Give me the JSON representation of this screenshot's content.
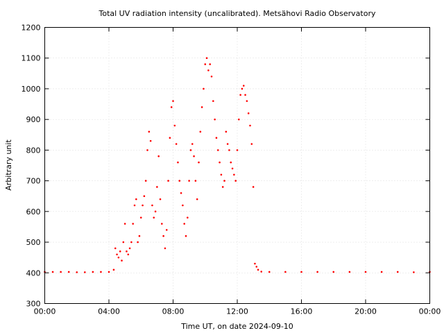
{
  "chart_data": {
    "type": "scatter",
    "title": "Total UV radiation intensity (uncalibrated). Metsähovi Radio Observatory",
    "xlabel": "Time UT, on date 2024-09-10",
    "ylabel": "Arbitrary unit",
    "xlim": [
      0,
      24
    ],
    "ylim": [
      300,
      1200
    ],
    "x_ticks": [
      {
        "value": 0,
        "label": "00:00"
      },
      {
        "value": 4,
        "label": "04:00"
      },
      {
        "value": 8,
        "label": "08:00"
      },
      {
        "value": 12,
        "label": "12:00"
      },
      {
        "value": 16,
        "label": "16:00"
      },
      {
        "value": 20,
        "label": "20:00"
      },
      {
        "value": 24,
        "label": "00:00"
      }
    ],
    "y_ticks": [
      {
        "value": 300,
        "label": "300"
      },
      {
        "value": 400,
        "label": "400"
      },
      {
        "value": 500,
        "label": "500"
      },
      {
        "value": 600,
        "label": "600"
      },
      {
        "value": 700,
        "label": "700"
      },
      {
        "value": 800,
        "label": "800"
      },
      {
        "value": 900,
        "label": "900"
      },
      {
        "value": 1000,
        "label": "1000"
      },
      {
        "value": 1100,
        "label": "1100"
      },
      {
        "value": 1200,
        "label": "1200"
      }
    ],
    "grid": true,
    "marker_color": "#ff0000",
    "series": [
      {
        "x": [
          0.0,
          0.5,
          1.0,
          1.5,
          2.0,
          2.5,
          3.0,
          3.5,
          4.0,
          4.3,
          4.4,
          4.5,
          4.6,
          4.7,
          4.8,
          4.9,
          5.0,
          5.1,
          5.2,
          5.3,
          5.4,
          5.5,
          5.6,
          5.7,
          5.8,
          5.9,
          6.0,
          6.1,
          6.2,
          6.3,
          6.4,
          6.5,
          6.6,
          6.7,
          6.8,
          6.9,
          7.0,
          7.1,
          7.2,
          7.3,
          7.4,
          7.5,
          7.6,
          7.7,
          7.8,
          7.9,
          8.0,
          8.1,
          8.2,
          8.3,
          8.4,
          8.5,
          8.6,
          8.7,
          8.8,
          8.9,
          9.0,
          9.1,
          9.2,
          9.3,
          9.4,
          9.5,
          9.6,
          9.7,
          9.8,
          9.9,
          10.0,
          10.1,
          10.2,
          10.3,
          10.4,
          10.5,
          10.6,
          10.7,
          10.8,
          10.9,
          11.0,
          11.1,
          11.2,
          11.3,
          11.4,
          11.5,
          11.6,
          11.7,
          11.8,
          11.9,
          12.0,
          12.1,
          12.2,
          12.3,
          12.4,
          12.5,
          12.6,
          12.7,
          12.8,
          12.9,
          13.0,
          13.1,
          13.2,
          13.3,
          13.5,
          14.0,
          15.0,
          16.0,
          17.0,
          18.0,
          19.0,
          20.0,
          21.0,
          22.0,
          23.0,
          24.0
        ],
        "y": [
          403,
          403,
          403,
          403,
          402,
          402,
          403,
          403,
          403,
          410,
          480,
          460,
          450,
          470,
          440,
          500,
          560,
          470,
          460,
          480,
          500,
          560,
          620,
          640,
          500,
          520,
          580,
          620,
          650,
          700,
          800,
          860,
          830,
          620,
          580,
          600,
          680,
          780,
          640,
          560,
          520,
          480,
          540,
          700,
          840,
          940,
          960,
          880,
          820,
          760,
          700,
          660,
          620,
          560,
          520,
          580,
          700,
          800,
          820,
          780,
          700,
          640,
          760,
          860,
          940,
          1000,
          1080,
          1100,
          1060,
          1080,
          1040,
          960,
          900,
          840,
          800,
          760,
          720,
          680,
          700,
          860,
          820,
          800,
          760,
          740,
          720,
          700,
          800,
          900,
          980,
          1000,
          1010,
          980,
          960,
          920,
          880,
          820,
          680,
          430,
          420,
          410,
          404,
          403,
          403,
          403,
          403,
          403,
          403,
          403,
          403,
          403,
          402,
          403
        ]
      }
    ]
  }
}
